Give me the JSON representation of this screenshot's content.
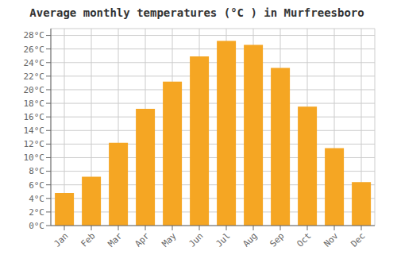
{
  "chart_data": {
    "type": "bar",
    "title": "Average monthly temperatures (°C ) in Murfreesboro",
    "categories": [
      "Jan",
      "Feb",
      "Mar",
      "Apr",
      "May",
      "Jun",
      "Jul",
      "Aug",
      "Sep",
      "Oct",
      "Nov",
      "Dec"
    ],
    "values": [
      4.8,
      7.2,
      12.2,
      17.2,
      21.2,
      24.9,
      27.2,
      26.6,
      23.2,
      17.5,
      11.4,
      6.4
    ],
    "color": "#F5A623",
    "ylim": [
      0,
      29
    ],
    "yticks": [
      {
        "value": 0,
        "label": "0°C"
      },
      {
        "value": 2,
        "label": "2°C"
      },
      {
        "value": 4,
        "label": "4°C"
      },
      {
        "value": 6,
        "label": "6°C"
      },
      {
        "value": 8,
        "label": "8°C"
      },
      {
        "value": 10,
        "label": "10°C"
      },
      {
        "value": 12,
        "label": "12°C"
      },
      {
        "value": 14,
        "label": "14°C"
      },
      {
        "value": 16,
        "label": "16°C"
      },
      {
        "value": 18,
        "label": "18°C"
      },
      {
        "value": 20,
        "label": "20°C"
      },
      {
        "value": 22,
        "label": "22°C"
      },
      {
        "value": 24,
        "label": "24°C"
      },
      {
        "value": 26,
        "label": "26°C"
      },
      {
        "value": 28,
        "label": "28°C"
      }
    ],
    "grid": true
  }
}
